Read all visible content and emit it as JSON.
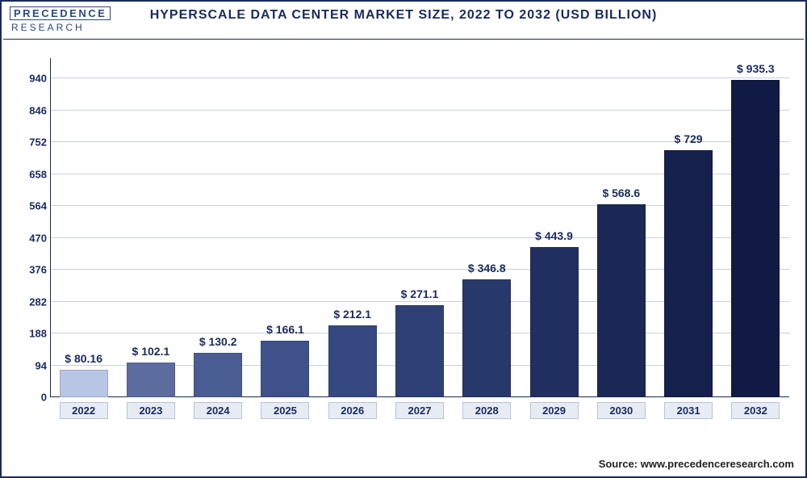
{
  "logo": {
    "line1": "PRECEDENCE",
    "line2": "RESEARCH"
  },
  "title": "HYPERSCALE DATA CENTER MARKET SIZE, 2022 TO 2032 (USD BILLION)",
  "source_label": "Source:",
  "source_value": "www.precedenceresearch.com",
  "chart": {
    "type": "bar",
    "categories": [
      "2022",
      "2023",
      "2024",
      "2025",
      "2026",
      "2027",
      "2028",
      "2029",
      "2030",
      "2031",
      "2032"
    ],
    "values": [
      80.16,
      102.1,
      130.2,
      166.1,
      212.1,
      271.1,
      346.8,
      443.9,
      568.6,
      729,
      935.3
    ],
    "value_labels": [
      "$ 80.16",
      "$ 102.1",
      "$ 130.2",
      "$ 166.1",
      "$ 212.1",
      "$ 271.1",
      "$ 346.8",
      "$ 443.9",
      "$ 568.6",
      "$ 729",
      "$ 935.3"
    ],
    "bar_colors": [
      "#b8c5e4",
      "#5d6c9e",
      "#4a5d93",
      "#3e5189",
      "#35487f",
      "#2e4075",
      "#27386b",
      "#212f60",
      "#1b2856",
      "#15214c",
      "#101a44"
    ],
    "ylim": [
      0,
      1000
    ],
    "y_ticks": [
      0,
      94,
      188,
      282,
      376,
      470,
      564,
      658,
      752,
      846,
      940
    ],
    "grid_color": "#c9cfd9",
    "axis_color": "#1a2a5e",
    "text_color": "#1a2a5e",
    "background_color": "#ffffff",
    "title_fontsize": 16,
    "label_fontsize": 13,
    "datalabel_fontsize": 14,
    "bar_width_ratio": 0.72,
    "x_label_bg": "#e7ecf4",
    "x_label_border": "#b7c3d9"
  }
}
